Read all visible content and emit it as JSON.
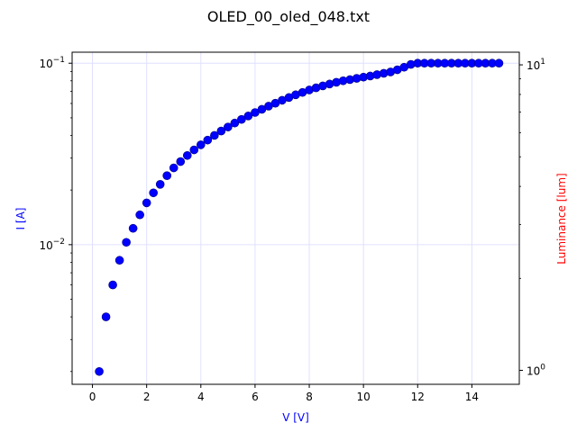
{
  "chart_data": {
    "type": "scatter",
    "title": "OLED_00_oled_048.txt",
    "xlabel": "V [V]",
    "ylabel": "I [A]",
    "ylabel_right": "Luminance [lum]",
    "xlim": [
      -0.75,
      15.75
    ],
    "ylim": [
      0.0017,
      0.115
    ],
    "yscale": "log",
    "ylim_right": [
      0.9,
      11
    ],
    "yscale_right": "log",
    "grid": true,
    "colors": {
      "xlabel": "#0000ff",
      "ylabel": "#0000ff",
      "ylabel_right": "#ff0000",
      "marker": "#0000ff",
      "grid": "#e0e0ff"
    },
    "x_ticks": [
      "0",
      "2",
      "4",
      "6",
      "8",
      "10",
      "12",
      "14"
    ],
    "y_ticks_left": [
      {
        "value": 0.01,
        "base": "10",
        "exp": "−2"
      },
      {
        "value": 0.1,
        "base": "10",
        "exp": "−1"
      }
    ],
    "y_ticks_right": [
      {
        "value": 1,
        "base": "10",
        "exp": "0"
      },
      {
        "value": 10,
        "base": "10",
        "exp": "1"
      }
    ],
    "series": [
      {
        "x": [
          0.25,
          0.5,
          0.75,
          1.0,
          1.25,
          1.5,
          1.75,
          2.0,
          2.25,
          2.5,
          2.75,
          3.0,
          3.25,
          3.5,
          3.75,
          4.0,
          4.25,
          4.5,
          4.75,
          5.0,
          5.25,
          5.5,
          5.75,
          6.0,
          6.25,
          6.5,
          6.75,
          7.0,
          7.25,
          7.5,
          7.75,
          8.0,
          8.25,
          8.5,
          8.75,
          9.0,
          9.25,
          9.5,
          9.75,
          10.0,
          10.25,
          10.5,
          10.75,
          11.0,
          11.25,
          11.5,
          11.75,
          12.0,
          12.25,
          12.5,
          12.75,
          13.0,
          13.25,
          13.5,
          13.75,
          14.0,
          14.25,
          14.5,
          14.75,
          15.0
        ],
        "y": [
          0.002,
          0.004,
          0.006,
          0.0082,
          0.0103,
          0.0123,
          0.0146,
          0.017,
          0.0193,
          0.0215,
          0.024,
          0.0265,
          0.0287,
          0.031,
          0.0333,
          0.0355,
          0.0377,
          0.04,
          0.0423,
          0.0445,
          0.0468,
          0.049,
          0.0512,
          0.0535,
          0.0557,
          0.058,
          0.0602,
          0.0625,
          0.0647,
          0.067,
          0.069,
          0.0712,
          0.0732,
          0.075,
          0.0768,
          0.0785,
          0.08,
          0.0812,
          0.0825,
          0.0838,
          0.085,
          0.0865,
          0.088,
          0.0895,
          0.092,
          0.095,
          0.0985,
          0.1,
          0.1,
          0.1,
          0.1,
          0.1,
          0.1,
          0.1,
          0.1,
          0.1,
          0.1,
          0.1,
          0.1,
          0.1
        ]
      }
    ]
  }
}
